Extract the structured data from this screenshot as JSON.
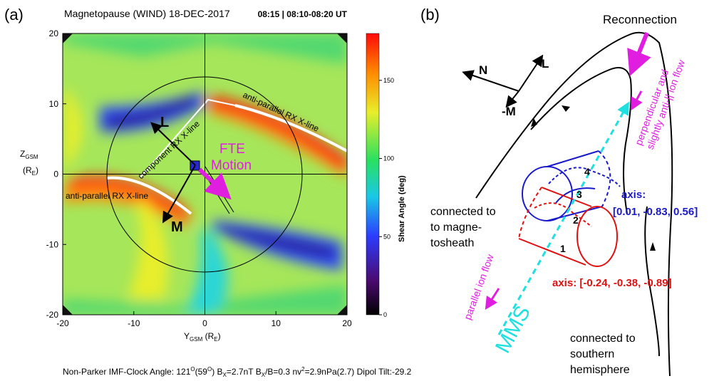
{
  "panel_a": {
    "label": "(a)",
    "title": "Magnetopause (WIND) 18-DEC-2017",
    "time": "08:15 | 08:10-08:20 UT",
    "y_label": [
      "Z",
      "GSM",
      "(R",
      "E",
      ")"
    ],
    "x_label": [
      "Y",
      "GSM",
      " (R",
      "E",
      ")"
    ],
    "xlim": [
      -20,
      20
    ],
    "ylim": [
      -20,
      20
    ],
    "xticks": [
      -20,
      -10,
      0,
      10,
      20
    ],
    "yticks": [
      -20,
      -10,
      0,
      10,
      20
    ],
    "colorbar": {
      "label": "Shear Angle (deg)",
      "lim": [
        0,
        180
      ],
      "ticks": [
        0,
        50,
        100,
        150
      ]
    },
    "annotations": {
      "L": "L",
      "M": "M",
      "fte": "FTE",
      "motion": "Motion",
      "component": "component RX X-line",
      "anti_upper": "anti-parallel RX X-line",
      "anti_lower": "anti-parallel RX X-line"
    },
    "footer": [
      "Non-Parker   IMF-Clock Angle: 121",
      "O",
      "(59",
      "O",
      ")   B",
      "X",
      "=2.7nT   B",
      "X",
      "/B=0.3   nv",
      "2",
      "=2.9nPa(2.7)   Dipol Tilt:-29.2"
    ]
  },
  "panel_b": {
    "label": "(b)",
    "reconnection": "Reconnection",
    "N": "N",
    "L": "L",
    "M": "-M",
    "perp_flow": [
      "perpendicular and",
      "slightly anti-|| ion flow"
    ],
    "blue_axis": [
      "axis:",
      "[0.01, -0.83, 0.56]"
    ],
    "red_axis": "axis: [-0.24, -0.38, -0.89]",
    "magnetosheath": [
      "connected to",
      "to magne-",
      "tosheath"
    ],
    "southern": [
      "connected to",
      "southern",
      "hemisphere"
    ],
    "parallel_flow": "parallel ion flow",
    "mms": "MMS",
    "numbers": [
      "1",
      "2",
      "3",
      "4"
    ]
  }
}
